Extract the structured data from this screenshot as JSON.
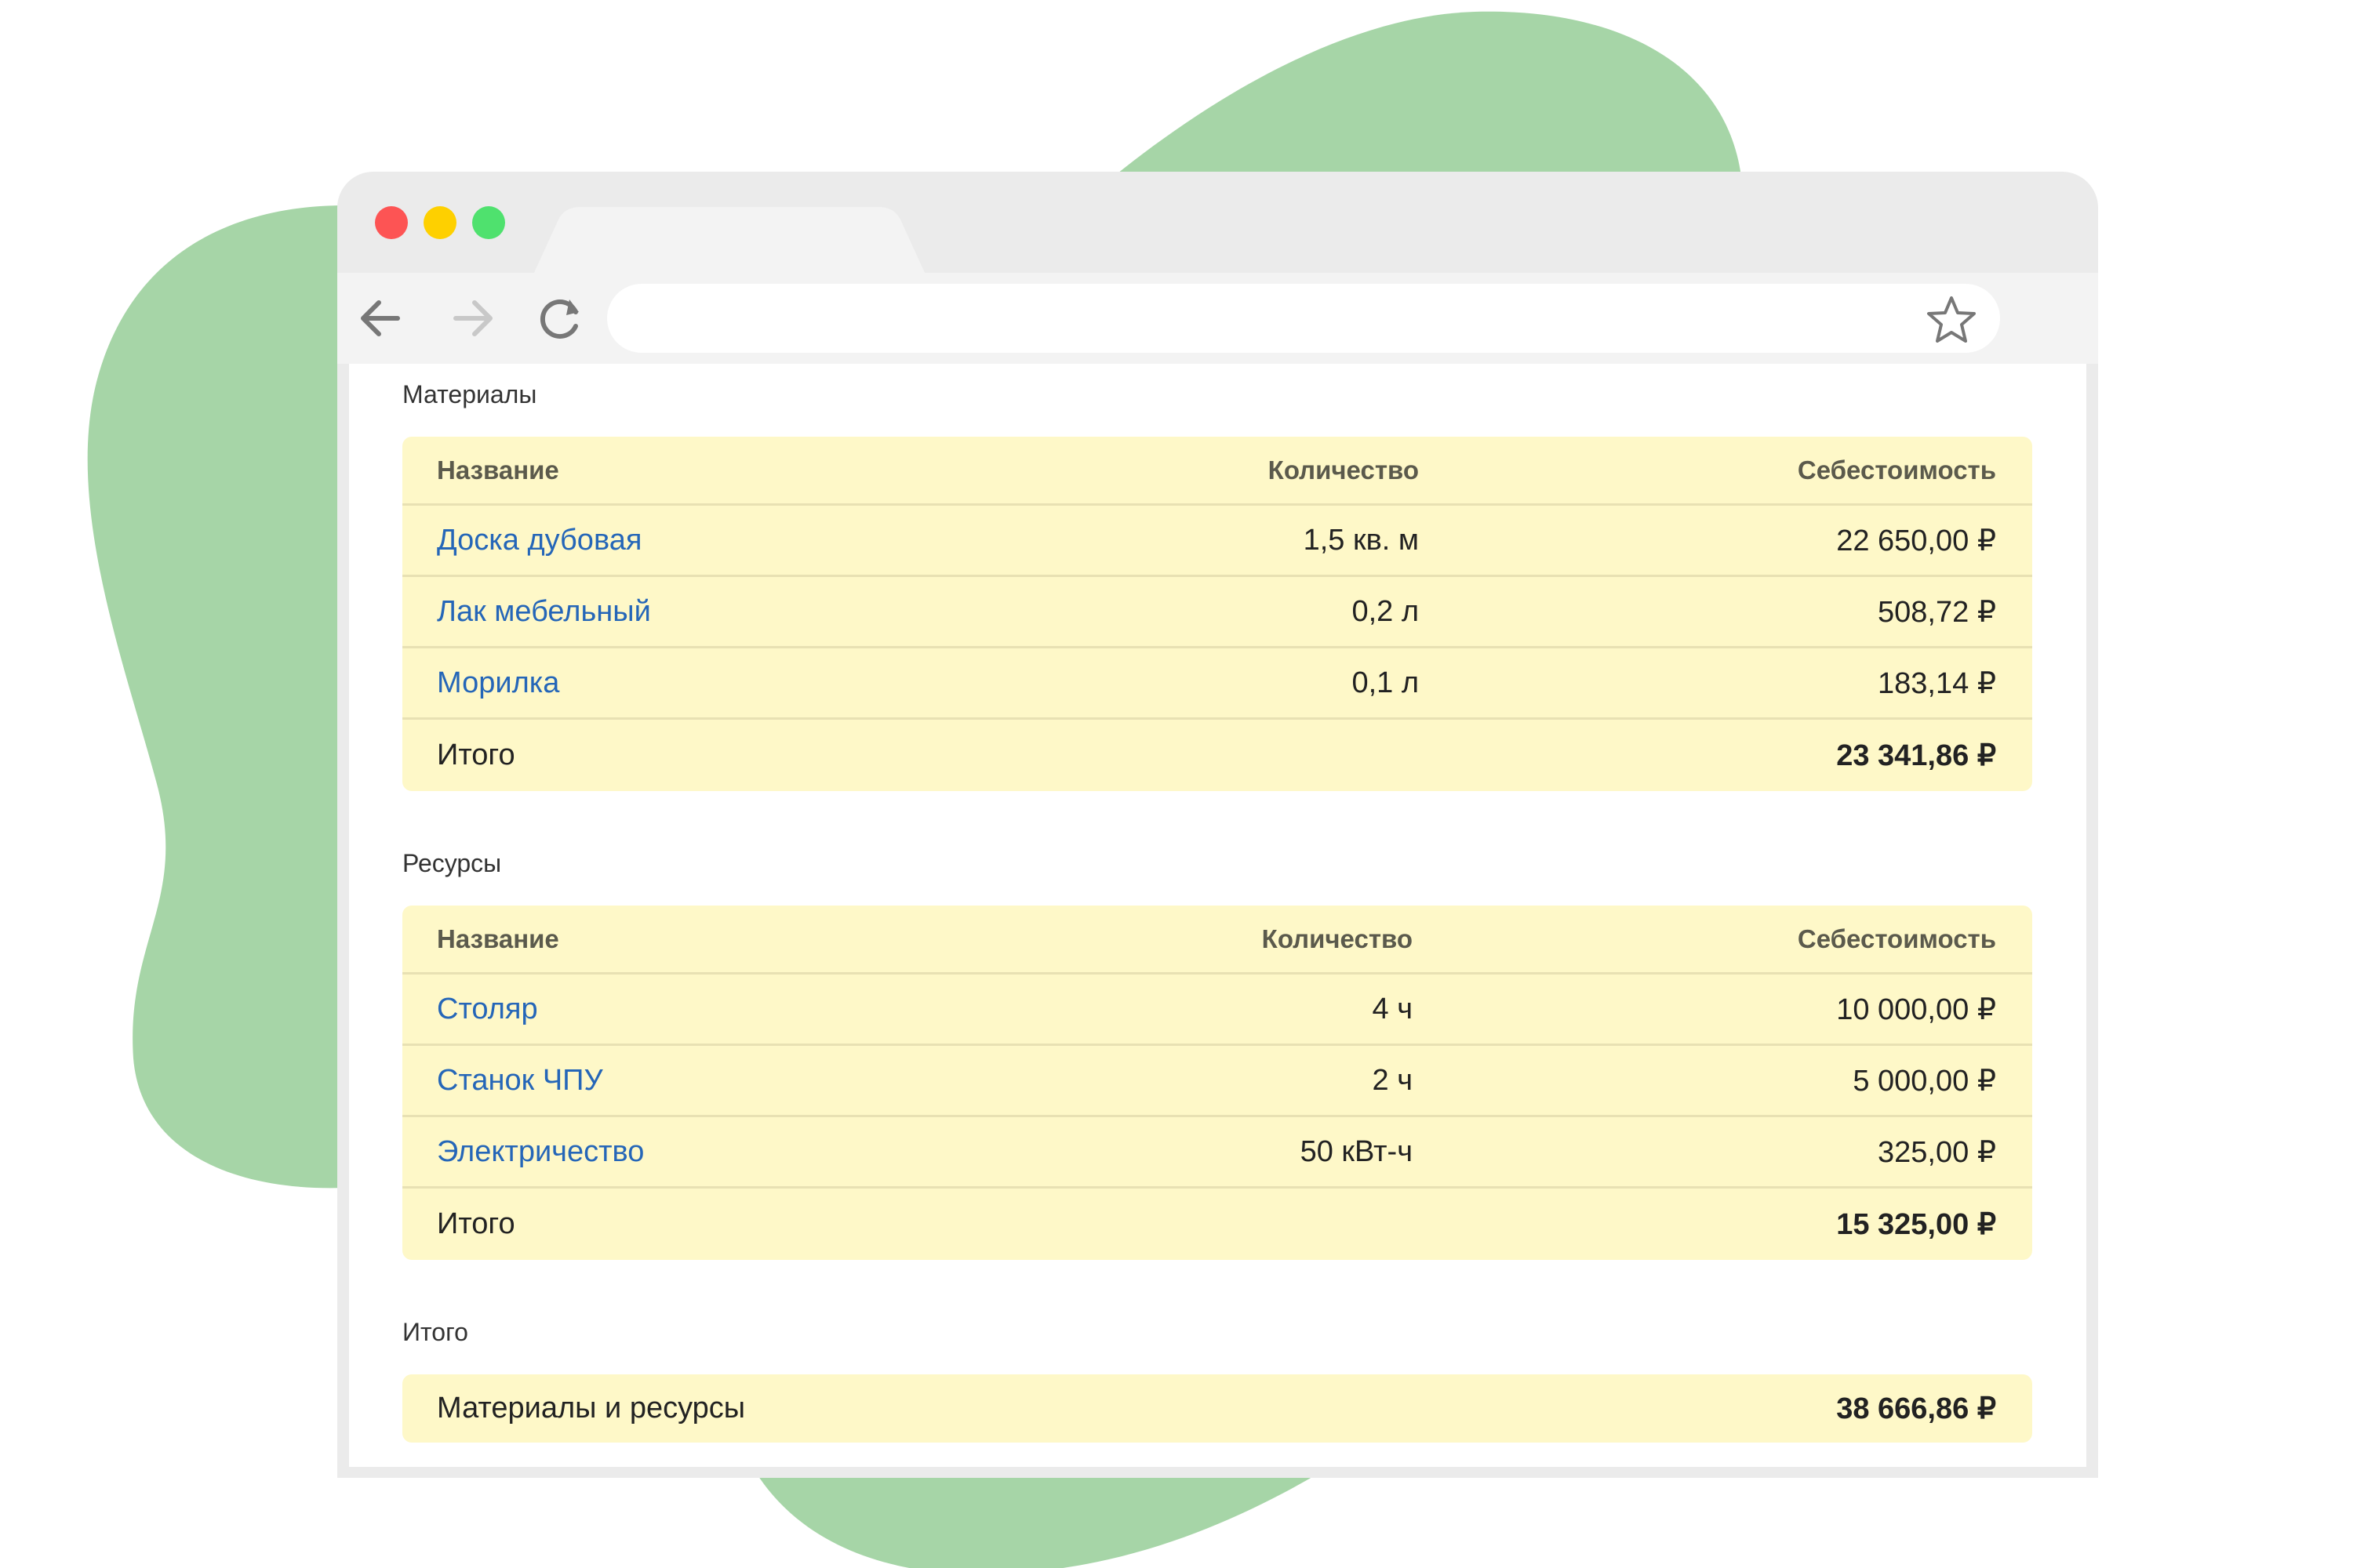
{
  "colors": {
    "blob": "#a6d5a7",
    "table_bg": "#fef8c8",
    "link": "#2566b8",
    "close": "#fd5454",
    "minimize": "#fed000",
    "maximize": "#4fe16e"
  },
  "browser": {
    "icons": [
      "back-arrow-icon",
      "forward-arrow-icon",
      "reload-icon",
      "star-icon"
    ]
  },
  "materials": {
    "title": "Материалы",
    "headers": {
      "name": "Название",
      "qty": "Количество",
      "cost": "Себестоимость"
    },
    "rows": [
      {
        "name": "Доска дубовая",
        "qty": "1,5 кв. м",
        "cost": "22 650,00 ₽"
      },
      {
        "name": "Лак мебельный",
        "qty": "0,2 л",
        "cost": "508,72 ₽"
      },
      {
        "name": "Морилка",
        "qty": "0,1 л",
        "cost": "183,14 ₽"
      }
    ],
    "total": {
      "label": "Итого",
      "cost": "23 341,86 ₽"
    }
  },
  "resources": {
    "title": "Ресурсы",
    "headers": {
      "name": "Название",
      "qty": "Количество",
      "cost": "Себестоимость"
    },
    "rows": [
      {
        "name": "Столяр",
        "qty": "4 ч",
        "cost": "10 000,00 ₽"
      },
      {
        "name": "Станок ЧПУ",
        "qty": "2 ч",
        "cost": "5 000,00 ₽"
      },
      {
        "name": "Электричество",
        "qty": "50 кВт-ч",
        "cost": "325,00 ₽"
      }
    ],
    "total": {
      "label": "Итого",
      "cost": "15 325,00 ₽"
    }
  },
  "summary": {
    "title": "Итого",
    "label": "Материалы и ресурсы",
    "cost": "38 666,86 ₽"
  }
}
